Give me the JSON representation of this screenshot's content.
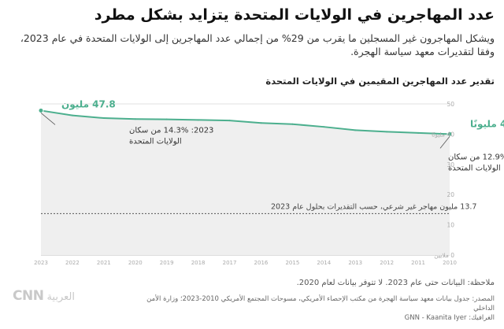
{
  "header": {
    "title": "عدد المهاجرين في الولايات المتحدة يتزايد بشكل مطرد",
    "subtitle": "ويشكل المهاجرون غير المسجلين ما يقرب من 29% من إجمالي عدد المهاجرين إلى الولايات المتحدة في عام 2023، وفقا لتقديرات معهد سياسة الهجرة."
  },
  "chart_data": {
    "type": "area",
    "title": "تقدير عدد المهاجرين المقيمين في الولايات المتحدة",
    "x": [
      2010,
      2011,
      2012,
      2013,
      2014,
      2015,
      2016,
      2017,
      2018,
      2019,
      2020,
      2021,
      2022,
      2023
    ],
    "series": [
      {
        "values": [
          40.0,
          40.4,
          40.8,
          41.3,
          42.4,
          43.3,
          43.7,
          44.5,
          44.7,
          44.9,
          45.0,
          45.3,
          46.2,
          47.8
        ]
      }
    ],
    "x_reversed": true,
    "ylim": [
      0,
      50
    ],
    "yticks": [
      0,
      10,
      20,
      30,
      40,
      50
    ],
    "ytick_labels": [
      "0 ملايين",
      "10",
      "20",
      "30",
      "40 مليونًا",
      "50"
    ],
    "xtick_labels": [
      "2010",
      "2011",
      "2012",
      "2013",
      "2014",
      "2015",
      "2016",
      "2017",
      "2018",
      "2019",
      "2020",
      "2021",
      "2022",
      "2023"
    ],
    "grid": true,
    "accent_color": "#4caf8e",
    "fill_color": "#efefef",
    "annotations": {
      "end_label": "47.8 مليون",
      "start_label": "40 مليونًا",
      "note_2023_line1": "2023: 14.3% من سكان",
      "note_2023_line2": "الولايات المتحدة",
      "note_2010_line1": "2010: 12.9% من سكان",
      "note_2010_line2": "الولايات المتحدة",
      "reference_value": 13.7,
      "reference_label": "13.7 مليون مهاجر غير شرعي، حسب التقديرات بحلول عام 2023"
    }
  },
  "footer": {
    "note": "ملاحظة: البيانات حتى عام 2023. لا تتوفر بيانات لعام 2020.",
    "source": "المصدر: جدول بيانات معهد سياسة الهجرة من مكتب الإحصاء الأمريكي، مسوحات المجتمع الأمريكي 2010-2023؛ وزارة الأمن الداخلي",
    "credit": "الغرافيك: GNN - Kaanita Iyer",
    "logo_text": "CNN",
    "logo_arabic": "العربية"
  }
}
